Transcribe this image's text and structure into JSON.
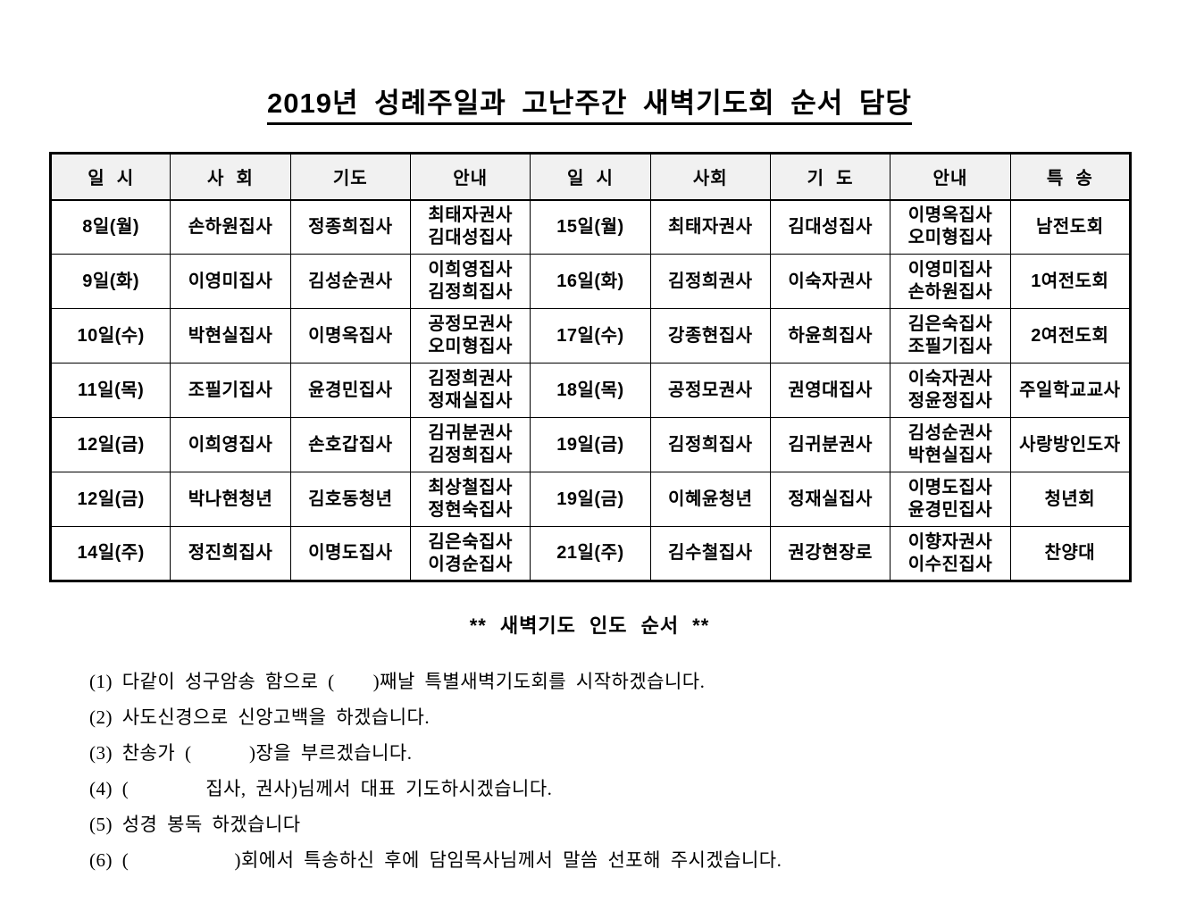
{
  "page": {
    "title": "2019년 성례주일과 고난주간 새벽기도회 순서 담당",
    "subtitle": "** 새벽기도 인도 순서 **"
  },
  "table": {
    "headers": [
      "일  시",
      "사  회",
      "기도",
      "안내",
      "일  시",
      "사회",
      "기  도",
      "안내",
      "특  송"
    ],
    "rows": [
      [
        "8일(월)",
        "손하원집사",
        "정종희집사",
        "최태자권사\n김대성집사",
        "15일(월)",
        "최태자권사",
        "김대성집사",
        "이명옥집사\n오미형집사",
        "남전도회"
      ],
      [
        "9일(화)",
        "이영미집사",
        "김성순권사",
        "이희영집사\n김정희집사",
        "16일(화)",
        "김정희권사",
        "이숙자권사",
        "이영미집사\n손하원집사",
        "1여전도회"
      ],
      [
        "10일(수)",
        "박현실집사",
        "이명옥집사",
        "공정모권사\n오미형집사",
        "17일(수)",
        "강종현집사",
        "하윤희집사",
        "김은숙집사\n조필기집사",
        "2여전도회"
      ],
      [
        "11일(목)",
        "조필기집사",
        "윤경민집사",
        "김정희권사\n정재실집사",
        "18일(목)",
        "공정모권사",
        "권영대집사",
        "이숙자권사\n정윤정집사",
        "주일학교교사"
      ],
      [
        "12일(금)",
        "이희영집사",
        "손호갑집사",
        "김귀분권사\n김정희집사",
        "19일(금)",
        "김정희집사",
        "김귀분권사",
        "김성순권사\n박현실집사",
        "사랑방인도자"
      ],
      [
        "12일(금)",
        "박나현청년",
        "김호동청년",
        "최상철집사\n정현숙집사",
        "19일(금)",
        "이혜윤청년",
        "정재실집사",
        "이명도집사\n윤경민집사",
        "청년회"
      ],
      [
        "14일(주)",
        "정진희집사",
        "이명도집사",
        "김은숙집사\n이경순집사",
        "21일(주)",
        "김수철집사",
        "권강현장로",
        "이향자권사\n이수진집사",
        "찬양대"
      ]
    ]
  },
  "instructions": [
    "(1) 다같이 성구암송 함으로 (    )째날 특별새벽기도회를 시작하겠습니다.",
    "(2) 사도신경으로 신앙고백을 하겠습니다.",
    "(3) 찬송가 (      )장을 부르겠습니다.",
    "(4) (        집사, 권사)님께서 대표 기도하시겠습니다.",
    "(5) 성경 봉독 하겠습니다",
    "(6) (           )회에서 특송하신 후에 담임목사님께서 말씀 선포해 주시겠습니다."
  ],
  "colors": {
    "text": "#000000",
    "table_border": "#000000",
    "header_background": "#f1f1f1",
    "page_background": "#ffffff"
  }
}
